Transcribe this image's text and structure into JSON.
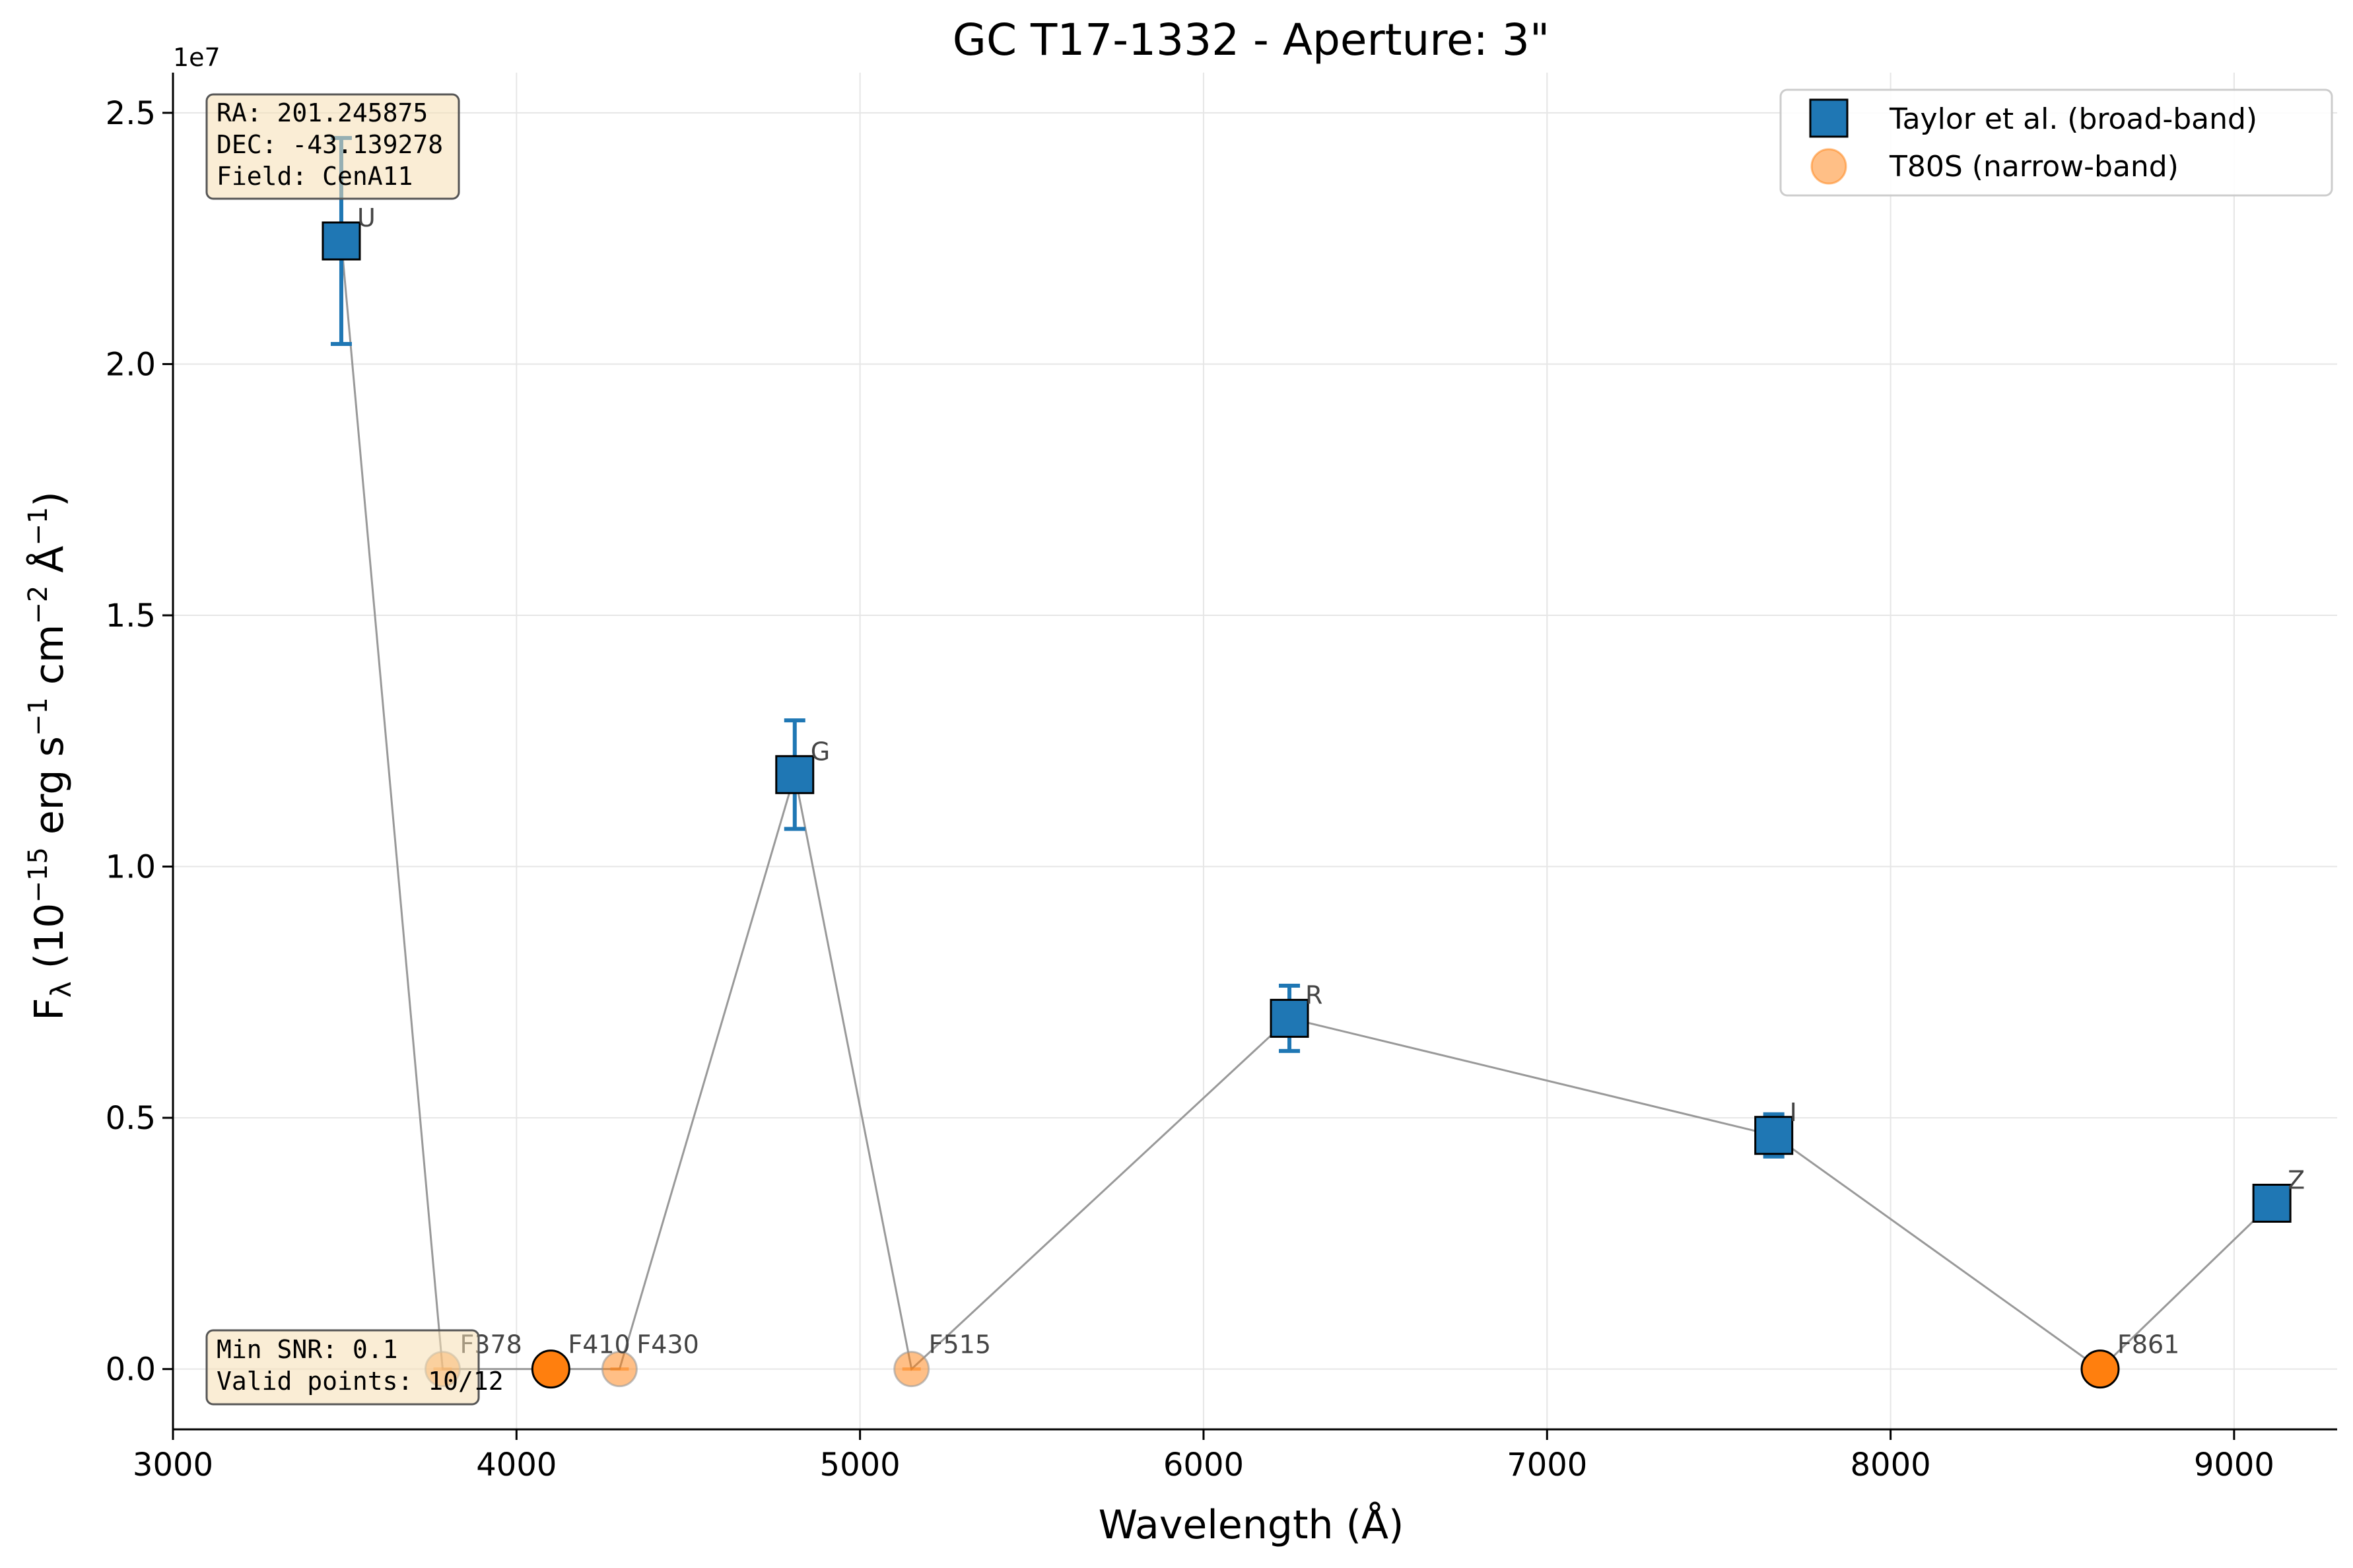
{
  "chart_data": {
    "type": "scatter",
    "title": "GC T17-1332 - Aperture: 3\"",
    "xlabel": "Wavelength (Å)",
    "ylabel_main": "F",
    "ylabel_sub": "λ",
    "ylabel_rest_1": " (10",
    "ylabel_exp_1": "−15",
    "ylabel_rest_2": " erg s",
    "ylabel_exp_2": "−1",
    "ylabel_rest_3": " cm",
    "ylabel_exp_3": "−2",
    "ylabel_rest_4": " Å",
    "ylabel_exp_4": "−1",
    "ylabel_rest_5": ")",
    "y_offset_label": "1e7",
    "xlim": [
      3000,
      9300
    ],
    "ylim": [
      -0.12,
      2.58
    ],
    "xticks": [
      3000,
      4000,
      5000,
      6000,
      7000,
      8000,
      9000
    ],
    "xtick_labels": [
      "3000",
      "4000",
      "5000",
      "6000",
      "7000",
      "8000",
      "9000"
    ],
    "yticks": [
      0.0,
      0.5,
      1.0,
      1.5,
      2.0,
      2.5
    ],
    "ytick_labels": [
      "0.0",
      "0.5",
      "1.0",
      "1.5",
      "2.0",
      "2.5"
    ],
    "grid": true,
    "legend_position": "top-right",
    "series": [
      {
        "name": "Taylor et al. (broad-band)",
        "marker": "square",
        "color": "#1f77b4",
        "points": [
          {
            "label": "U",
            "x": 3490,
            "y": 2.245,
            "err": 0.205
          },
          {
            "label": "G",
            "x": 4810,
            "y": 1.183,
            "err": 0.108
          },
          {
            "label": "R",
            "x": 6250,
            "y": 0.698,
            "err": 0.065
          },
          {
            "label": "I",
            "x": 7660,
            "y": 0.465,
            "err": 0.042
          },
          {
            "label": "Z",
            "x": 9110,
            "y": 0.33,
            "err": 0.0
          }
        ]
      },
      {
        "name": "T80S (narrow-band)",
        "marker": "circle",
        "color": "#ff7f0e",
        "points": [
          {
            "label": "F378",
            "x": 3785,
            "y": 0.0,
            "faded": true
          },
          {
            "label": "F410",
            "x": 4100,
            "y": 0.0,
            "faded": false
          },
          {
            "label": "F430",
            "x": 4300,
            "y": 0.0,
            "faded": true
          },
          {
            "label": "F515",
            "x": 5150,
            "y": 0.0,
            "faded": true
          },
          {
            "label": "F861",
            "x": 8610,
            "y": 0.0,
            "faded": false
          }
        ]
      }
    ],
    "connect_order": [
      3490,
      3785,
      4100,
      4300,
      4810,
      5150,
      6250,
      7660,
      8610,
      9110
    ],
    "info_box": {
      "ra": "RA: 201.245875",
      "dec": "DEC: -43.139278",
      "field": "Field: CenA11"
    },
    "stats_box": {
      "min_snr": "Min SNR: 0.1",
      "valid_points": "Valid points: 10/12"
    }
  }
}
